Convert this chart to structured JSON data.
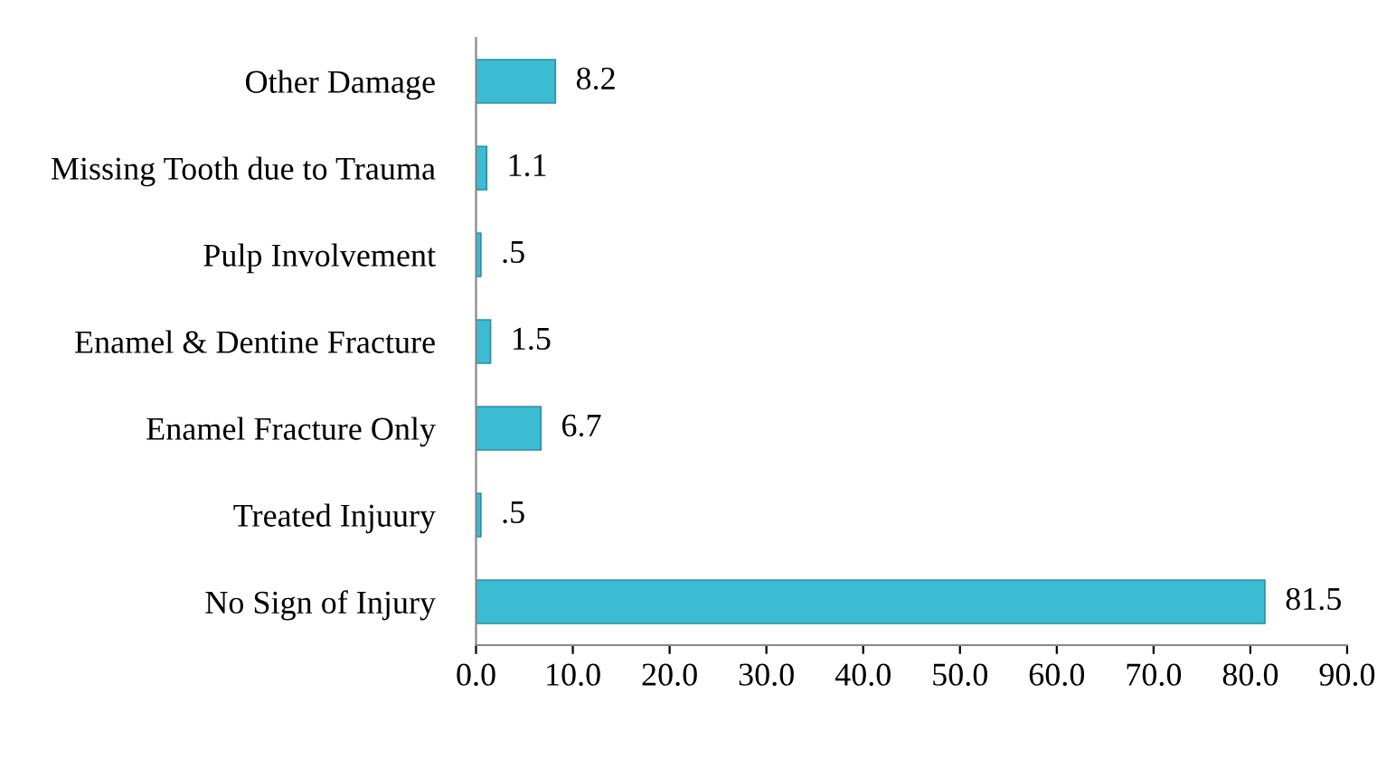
{
  "chart_data": {
    "type": "bar",
    "orientation": "horizontal",
    "categories": [
      "Other Damage",
      "Missing Tooth due to Trauma",
      "Pulp Involvement",
      "Enamel & Dentine Fracture",
      "Enamel Fracture Only",
      "Treated Injuury",
      "No Sign of Injury"
    ],
    "values": [
      8.2,
      1.1,
      0.5,
      1.5,
      6.7,
      0.5,
      81.5
    ],
    "value_labels": [
      "8.2",
      "1.1",
      ".5",
      "1.5",
      "6.7",
      ".5",
      "81.5"
    ],
    "color": "#3bbcd3",
    "xlim": [
      0,
      90
    ],
    "xticks": [
      {
        "value": 0,
        "label": "0.0"
      },
      {
        "value": 10,
        "label": "10.0"
      },
      {
        "value": 20,
        "label": "20.0"
      },
      {
        "value": 30,
        "label": "30.0"
      },
      {
        "value": 40,
        "label": "40.0"
      },
      {
        "value": 50,
        "label": "50.0"
      },
      {
        "value": 60,
        "label": "60.0"
      },
      {
        "value": 70,
        "label": "70.0"
      },
      {
        "value": 80,
        "label": "80.0"
      },
      {
        "value": 90,
        "label": "90.0"
      }
    ],
    "grid": false,
    "legend": false
  }
}
